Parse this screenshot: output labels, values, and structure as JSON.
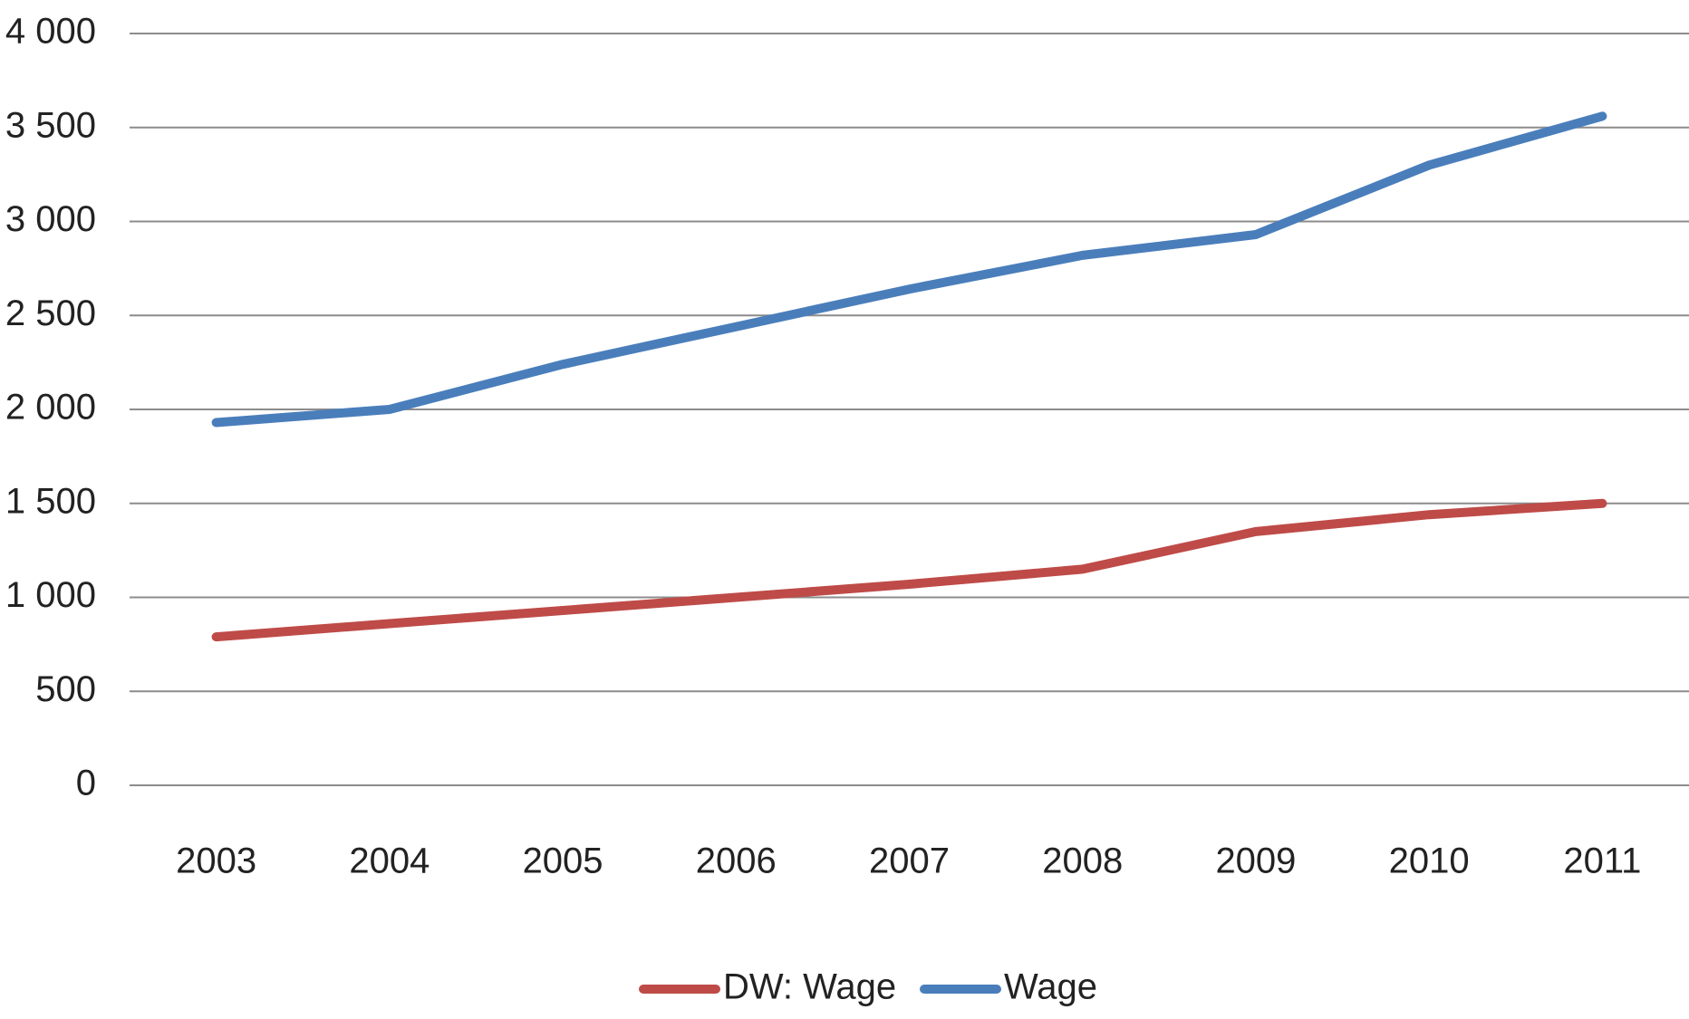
{
  "chart_data": {
    "type": "line",
    "categories": [
      "2003",
      "2004",
      "2005",
      "2006",
      "2007",
      "2008",
      "2009",
      "2010",
      "2011"
    ],
    "series": [
      {
        "name": "DW: Wage",
        "color": "#be4b48",
        "values": [
          790,
          860,
          930,
          1000,
          1070,
          1150,
          1350,
          1440,
          1500
        ]
      },
      {
        "name": "Wage",
        "color": "#4a7ebb",
        "values": [
          1930,
          2000,
          2240,
          2440,
          2640,
          2820,
          2930,
          3300,
          3560
        ]
      }
    ],
    "ylim": [
      0,
      4000
    ],
    "yticks": [
      0,
      500,
      {
        "value": 1000,
        "label": "1 000"
      },
      {
        "value": 1500,
        "label": "1 500"
      },
      {
        "value": 2000,
        "label": "2 000"
      },
      {
        "value": 2500,
        "label": "2 500"
      },
      {
        "value": 3000,
        "label": "3 000"
      },
      {
        "value": 3500,
        "label": "3 500"
      },
      {
        "value": 4000,
        "label": "4 000"
      }
    ],
    "grid": true,
    "legend": "bottom"
  }
}
